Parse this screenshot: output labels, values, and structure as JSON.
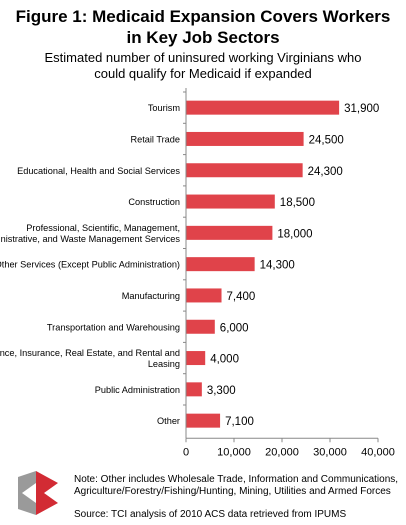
{
  "title_line1": "Figure 1: Medicaid Expansion Covers Workers",
  "title_line2": "in Key Job Sectors",
  "subtitle_line1": "Estimated number of uninsured working Virginians who",
  "subtitle_line2": "could qualify for Medicaid if expanded",
  "note": "Note: Other includes Wholesale Trade, Information and Communications, Agriculture/Forestry/Fishing/Hunting, Mining, Utilities and Armed Forces",
  "source": "Source: TCI analysis of 2010 ACS data retrieved from IPUMS",
  "colors": {
    "bar": "#e0434a",
    "axis": "#888888",
    "logo_red": "#d22b34",
    "logo_gray": "#9a9a9a"
  },
  "chart_data": {
    "type": "bar",
    "orientation": "horizontal",
    "categories": [
      [
        "Tourism"
      ],
      [
        "Retail Trade"
      ],
      [
        "Educational, Health and Social Services"
      ],
      [
        "Construction"
      ],
      [
        "Professional, Scientific, Management,",
        "Administrative, and Waste Management Services"
      ],
      [
        "Other Services (Except Public Administration)"
      ],
      [
        "Manufacturing"
      ],
      [
        "Transportation and Warehousing"
      ],
      [
        "Finance, Insurance, Real Estate, and Rental and",
        "Leasing"
      ],
      [
        "Public Administration"
      ],
      [
        "Other"
      ]
    ],
    "values": [
      31900,
      24500,
      24300,
      18500,
      18000,
      14300,
      7400,
      6000,
      4000,
      3300,
      7100
    ],
    "value_labels": [
      "31,900",
      "24,500",
      "24,300",
      "18,500",
      "18,000",
      "14,300",
      "7,400",
      "6,000",
      "4,000",
      "3,300",
      "7,100"
    ],
    "xlim": [
      0,
      40000
    ],
    "xticks": [
      0,
      10000,
      20000,
      30000,
      40000
    ],
    "xtick_labels": [
      "0",
      "10,000",
      "20,000",
      "30,000",
      "40,000"
    ],
    "grid": false
  }
}
